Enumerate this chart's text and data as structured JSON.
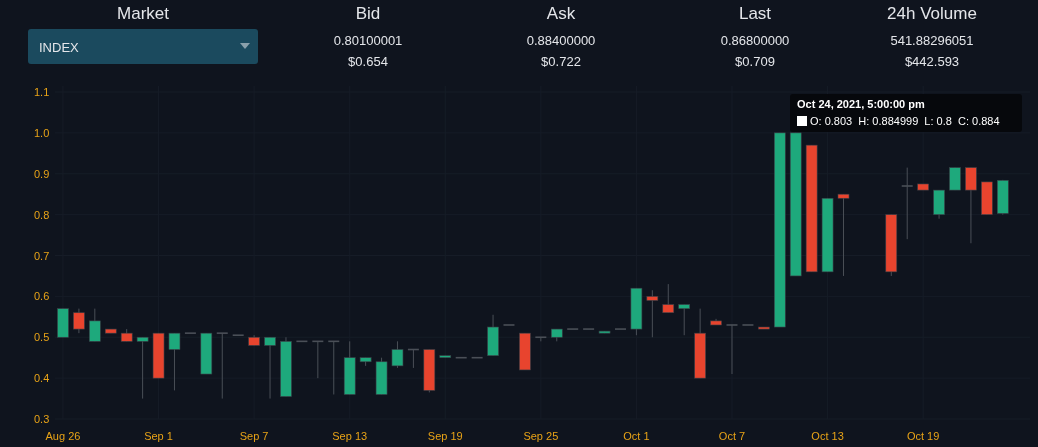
{
  "chart_data": {
    "type": "candlestick",
    "x": [
      "2021-08-26",
      "2021-08-27",
      "2021-08-28",
      "2021-08-29",
      "2021-08-30",
      "2021-08-31",
      "2021-09-01",
      "2021-09-02",
      "2021-09-03",
      "2021-09-04",
      "2021-09-05",
      "2021-09-06",
      "2021-09-07",
      "2021-09-08",
      "2021-09-09",
      "2021-09-10",
      "2021-09-11",
      "2021-09-12",
      "2021-09-13",
      "2021-09-14",
      "2021-09-15",
      "2021-09-16",
      "2021-09-17",
      "2021-09-18",
      "2021-09-19",
      "2021-09-20",
      "2021-09-21",
      "2021-09-22",
      "2021-09-23",
      "2021-09-24",
      "2021-09-25",
      "2021-09-26",
      "2021-09-27",
      "2021-09-28",
      "2021-09-29",
      "2021-09-30",
      "2021-10-01",
      "2021-10-02",
      "2021-10-03",
      "2021-10-04",
      "2021-10-05",
      "2021-10-06",
      "2021-10-07",
      "2021-10-08",
      "2021-10-09",
      "2021-10-10",
      "2021-10-11",
      "2021-10-12",
      "2021-10-13",
      "2021-10-14",
      "2021-10-17",
      "2021-10-18",
      "2021-10-19",
      "2021-10-20",
      "2021-10-21",
      "2021-10-22",
      "2021-10-23",
      "2021-10-24"
    ],
    "ohlc": [
      [
        0.5,
        0.57,
        0.5,
        0.57
      ],
      [
        0.56,
        0.57,
        0.51,
        0.52
      ],
      [
        0.49,
        0.57,
        0.49,
        0.54
      ],
      [
        0.52,
        0.52,
        0.51,
        0.51
      ],
      [
        0.51,
        0.52,
        0.49,
        0.49
      ],
      [
        0.49,
        0.5,
        0.35,
        0.5
      ],
      [
        0.51,
        0.51,
        0.4,
        0.4
      ],
      [
        0.47,
        0.51,
        0.37,
        0.51
      ],
      [
        0.51,
        0.51,
        0.51,
        0.51
      ],
      [
        0.41,
        0.51,
        0.41,
        0.51
      ],
      [
        0.51,
        0.51,
        0.35,
        0.51
      ],
      [
        0.505,
        0.505,
        0.505,
        0.505
      ],
      [
        0.5,
        0.505,
        0.48,
        0.48
      ],
      [
        0.48,
        0.5,
        0.35,
        0.5
      ],
      [
        0.355,
        0.5,
        0.355,
        0.49
      ],
      [
        0.49,
        0.49,
        0.49,
        0.49
      ],
      [
        0.49,
        0.49,
        0.4,
        0.49
      ],
      [
        0.49,
        0.49,
        0.36,
        0.49
      ],
      [
        0.36,
        0.49,
        0.36,
        0.45
      ],
      [
        0.44,
        0.45,
        0.43,
        0.45
      ],
      [
        0.36,
        0.45,
        0.36,
        0.44
      ],
      [
        0.43,
        0.49,
        0.425,
        0.47
      ],
      [
        0.47,
        0.47,
        0.425,
        0.47
      ],
      [
        0.47,
        0.47,
        0.365,
        0.37
      ],
      [
        0.45,
        0.455,
        0.45,
        0.455
      ],
      [
        0.45,
        0.45,
        0.45,
        0.45
      ],
      [
        0.45,
        0.45,
        0.45,
        0.45
      ],
      [
        0.455,
        0.555,
        0.455,
        0.525
      ],
      [
        0.53,
        0.53,
        0.53,
        0.53
      ],
      [
        0.51,
        0.51,
        0.42,
        0.42
      ],
      [
        0.5,
        0.5,
        0.49,
        0.5
      ],
      [
        0.5,
        0.52,
        0.49,
        0.52
      ],
      [
        0.52,
        0.52,
        0.52,
        0.52
      ],
      [
        0.52,
        0.52,
        0.52,
        0.52
      ],
      [
        0.51,
        0.515,
        0.51,
        0.515
      ],
      [
        0.52,
        0.52,
        0.52,
        0.52
      ],
      [
        0.52,
        0.62,
        0.505,
        0.62
      ],
      [
        0.6,
        0.615,
        0.5,
        0.59
      ],
      [
        0.58,
        0.63,
        0.56,
        0.56
      ],
      [
        0.57,
        0.58,
        0.505,
        0.58
      ],
      [
        0.51,
        0.57,
        0.4,
        0.4
      ],
      [
        0.54,
        0.545,
        0.53,
        0.53
      ],
      [
        0.53,
        0.53,
        0.41,
        0.53
      ],
      [
        0.53,
        0.53,
        0.53,
        0.53
      ],
      [
        0.525,
        0.525,
        0.52,
        0.52
      ],
      [
        0.525,
        1.0,
        0.525,
        1.0
      ],
      [
        0.65,
        1.0,
        0.65,
        1.0
      ],
      [
        0.97,
        0.97,
        0.66,
        0.66
      ],
      [
        0.66,
        0.84,
        0.66,
        0.84
      ],
      [
        0.85,
        0.85,
        0.65,
        0.84
      ],
      [
        0.8,
        0.8,
        0.65,
        0.66
      ],
      [
        0.87,
        0.915,
        0.74,
        0.87
      ],
      [
        0.875,
        0.875,
        0.86,
        0.86
      ],
      [
        0.8,
        0.86,
        0.79,
        0.86
      ],
      [
        0.86,
        0.915,
        0.86,
        0.915
      ],
      [
        0.915,
        0.915,
        0.73,
        0.86
      ],
      [
        0.88,
        0.88,
        0.8,
        0.8
      ],
      [
        0.803,
        0.884999,
        0.8,
        0.884
      ]
    ],
    "colors": [
      "#1ea97c",
      "#e8442e",
      "#1ea97c",
      "#e8442e",
      "#e8442e",
      "#1ea97c",
      "#e8442e",
      "#1ea97c",
      "#4a4f57",
      "#1ea97c",
      "#4a4f57",
      "#4a4f57",
      "#e8442e",
      "#1ea97c",
      "#1ea97c",
      "#4a4f57",
      "#4a4f57",
      "#4a4f57",
      "#1ea97c",
      "#1ea97c",
      "#1ea97c",
      "#1ea97c",
      "#4a4f57",
      "#e8442e",
      "#1ea97c",
      "#4a4f57",
      "#4a4f57",
      "#1ea97c",
      "#4a4f57",
      "#e8442e",
      "#4a4f57",
      "#1ea97c",
      "#4a4f57",
      "#4a4f57",
      "#1ea97c",
      "#4a4f57",
      "#1ea97c",
      "#e8442e",
      "#e8442e",
      "#1ea97c",
      "#e8442e",
      "#e8442e",
      "#4a4f57",
      "#4a4f57",
      "#e8442e",
      "#1ea97c",
      "#1ea97c",
      "#e8442e",
      "#1ea97c",
      "#e8442e",
      "#e8442e",
      "#4a4f57",
      "#e8442e",
      "#1ea97c",
      "#1ea97c",
      "#e8442e",
      "#e8442e",
      "#1ea97c"
    ],
    "xlim": [
      "2021-08-25T12:00",
      "2021-10-25T17:00"
    ],
    "xticks": [
      {
        "value": "2021-08-26",
        "label": "Aug 26"
      },
      {
        "value": "2021-09-01",
        "label": "Sep 1"
      },
      {
        "value": "2021-09-07",
        "label": "Sep 7"
      },
      {
        "value": "2021-09-13",
        "label": "Sep 13"
      },
      {
        "value": "2021-09-19",
        "label": "Sep 19"
      },
      {
        "value": "2021-09-25",
        "label": "Sep 25"
      },
      {
        "value": "2021-10-01",
        "label": "Oct 1"
      },
      {
        "value": "2021-10-07",
        "label": "Oct 7"
      },
      {
        "value": "2021-10-13",
        "label": "Oct 13"
      },
      {
        "value": "2021-10-19",
        "label": "Oct 19"
      }
    ],
    "ylim": [
      0.3,
      1.1
    ],
    "yticks": [
      0.3,
      0.4,
      0.5,
      0.6,
      0.7,
      0.8,
      0.9,
      {
        "value": 1,
        "label": "1.0"
      },
      1.1
    ],
    "grid": true,
    "annotations": [
      "Market",
      "INDEX",
      "Bid",
      "0.80100001",
      "$0.654",
      "Ask",
      "0.88400000",
      "$0.722",
      "Last",
      "0.86800000",
      "$0.709",
      "24h Volume",
      "541.88296051",
      "$442.593",
      "Oct 24, 2021, 5:00:00 pm",
      "O: 0.803  H: 0.884999  L: 0.8  C: 0.884"
    ]
  }
}
